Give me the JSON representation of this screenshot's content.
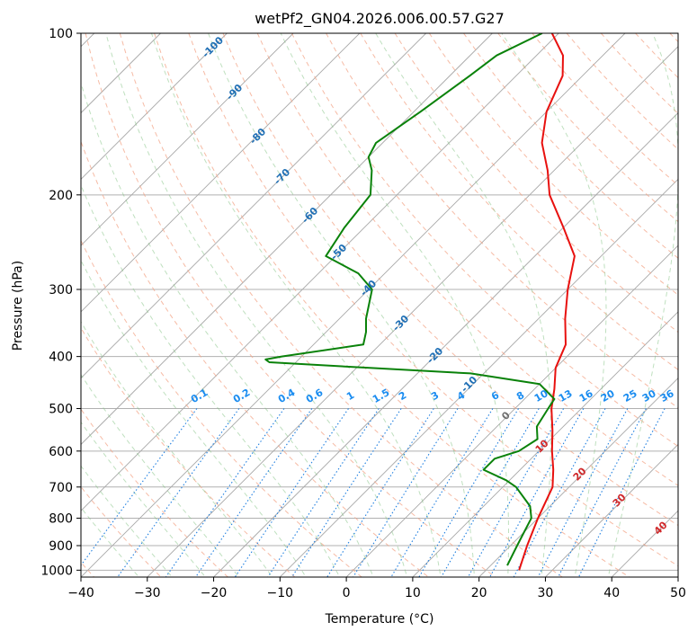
{
  "chart_data": {
    "type": "line",
    "title": "wetPf2_GN04.2026.006.00.57.G27",
    "xlabel": "Temperature (°C)",
    "ylabel": "Pressure (hPa)",
    "x_scale": "skew-T",
    "y_scale": "log",
    "xlim": [
      -40,
      50
    ],
    "ylim": [
      1030,
      100
    ],
    "x_ticks": [
      "−40",
      "−30",
      "−20",
      "−10",
      "0",
      "10",
      "20",
      "30",
      "40",
      "50"
    ],
    "y_ticks": [
      "100",
      "200",
      "300",
      "400",
      "500",
      "600",
      "700",
      "800",
      "900",
      "1000"
    ],
    "grid": true,
    "skew_deg": 45,
    "series": [
      {
        "color": "#e8110f",
        "points": [
          [
            100,
            -51
          ],
          [
            110,
            -46
          ],
          [
            120,
            -43
          ],
          [
            140,
            -40
          ],
          [
            160,
            -36
          ],
          [
            180,
            -31
          ],
          [
            200,
            -27
          ],
          [
            230,
            -20
          ],
          [
            260,
            -14
          ],
          [
            300,
            -10
          ],
          [
            340,
            -6
          ],
          [
            380,
            -2
          ],
          [
            420,
            0
          ],
          [
            460,
            3
          ],
          [
            500,
            5.5
          ],
          [
            550,
            9
          ],
          [
            600,
            12
          ],
          [
            650,
            15
          ],
          [
            700,
            17.5
          ],
          [
            800,
            20
          ],
          [
            900,
            22.5
          ],
          [
            1000,
            25
          ]
        ]
      },
      {
        "color": "#0a820a",
        "points": [
          [
            100,
            -52.5
          ],
          [
            110,
            -56
          ],
          [
            120,
            -57
          ],
          [
            140,
            -59
          ],
          [
            160,
            -61
          ],
          [
            170,
            -60
          ],
          [
            180,
            -57.5
          ],
          [
            200,
            -54
          ],
          [
            230,
            -53
          ],
          [
            260,
            -51.5
          ],
          [
            280,
            -44
          ],
          [
            300,
            -39.5
          ],
          [
            340,
            -36
          ],
          [
            360,
            -34
          ],
          [
            380,
            -32.5
          ],
          [
            400,
            -43
          ],
          [
            405,
            -45
          ],
          [
            410,
            -44
          ],
          [
            420,
            -28
          ],
          [
            430,
            -12
          ],
          [
            450,
            0
          ],
          [
            480,
            4.5
          ],
          [
            500,
            5
          ],
          [
            540,
            6
          ],
          [
            570,
            8
          ],
          [
            600,
            7
          ],
          [
            620,
            4.5
          ],
          [
            650,
            4.5
          ],
          [
            680,
            9.5
          ],
          [
            700,
            12
          ],
          [
            760,
            17
          ],
          [
            800,
            19
          ],
          [
            900,
            21
          ],
          [
            980,
            22.5
          ]
        ]
      }
    ],
    "annotation_sets": [
      {
        "kind": "dry-adiabats",
        "color": "#e98b68",
        "labels": [
          "-100",
          "-90",
          "-80",
          "-70",
          "-60",
          "-50",
          "-40",
          "-30",
          "-20",
          "-10",
          "0",
          "10",
          "20",
          "30",
          "40"
        ]
      },
      {
        "kind": "mixing-ratio",
        "color": "#1a8cf0",
        "labels": [
          "0.1",
          "0.2",
          "0.4",
          "0.6",
          "1",
          "1.5",
          "2",
          "3",
          "4",
          "6",
          "8",
          "10",
          "13",
          "16",
          "20",
          "25",
          "30",
          "36"
        ]
      }
    ]
  }
}
